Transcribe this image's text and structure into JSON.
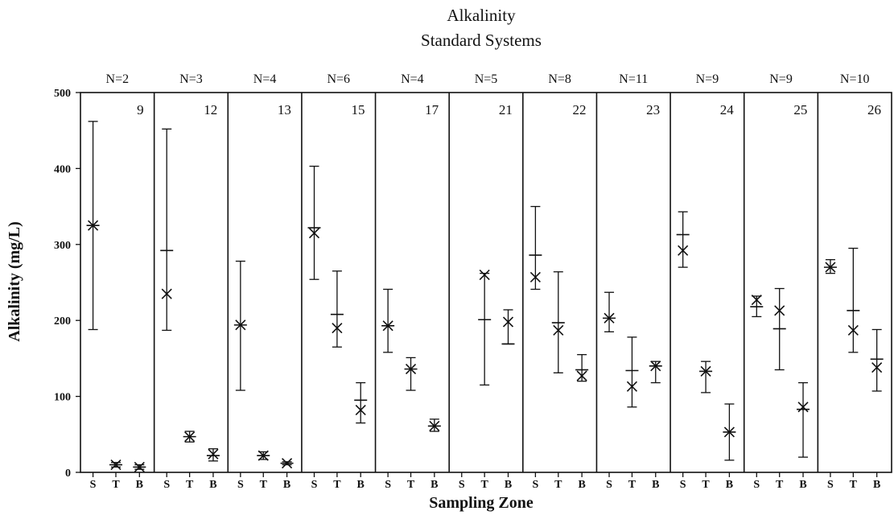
{
  "chart_data": {
    "type": "scatter",
    "title": "Alkalinity",
    "subtitle": "Standard Systems",
    "xlabel": "Sampling Zone",
    "ylabel": "Alkalinity (mg/L)",
    "ylim": [
      0,
      500
    ],
    "yticks": [
      "0",
      "100",
      "200",
      "300",
      "400",
      "500"
    ],
    "zones": [
      "S",
      "T",
      "B"
    ],
    "panels": [
      {
        "system": "9",
        "n_label": "N=2",
        "points": [
          {
            "zone": "S",
            "mean": 325,
            "median": 325,
            "min": 188,
            "max": 462
          },
          {
            "zone": "T",
            "mean": 10,
            "median": 10,
            "min": 7,
            "max": 13
          },
          {
            "zone": "B",
            "mean": 7,
            "median": 7,
            "min": 4,
            "max": 10
          }
        ]
      },
      {
        "system": "12",
        "n_label": "N=3",
        "points": [
          {
            "zone": "S",
            "mean": 235,
            "median": 292,
            "min": 187,
            "max": 452
          },
          {
            "zone": "T",
            "mean": 47,
            "median": 47,
            "min": 40,
            "max": 54
          },
          {
            "zone": "B",
            "mean": 24,
            "median": 22,
            "min": 15,
            "max": 31
          }
        ]
      },
      {
        "system": "13",
        "n_label": "N=4",
        "points": [
          {
            "zone": "S",
            "mean": 194,
            "median": 194,
            "min": 108,
            "max": 278
          },
          {
            "zone": "T",
            "mean": 22,
            "median": 22,
            "min": 17,
            "max": 27
          },
          {
            "zone": "B",
            "mean": 12,
            "median": 12,
            "min": 10,
            "max": 14
          }
        ]
      },
      {
        "system": "15",
        "n_label": "N=6",
        "points": [
          {
            "zone": "S",
            "mean": 315,
            "median": 322,
            "min": 254,
            "max": 403
          },
          {
            "zone": "T",
            "mean": 190,
            "median": 208,
            "min": 165,
            "max": 265
          },
          {
            "zone": "B",
            "mean": 82,
            "median": 95,
            "min": 65,
            "max": 118
          }
        ]
      },
      {
        "system": "17",
        "n_label": "N=4",
        "points": [
          {
            "zone": "S",
            "mean": 193,
            "median": 193,
            "min": 158,
            "max": 241
          },
          {
            "zone": "T",
            "mean": 136,
            "median": 136,
            "min": 108,
            "max": 151
          },
          {
            "zone": "B",
            "mean": 61,
            "median": 61,
            "min": 54,
            "max": 70
          }
        ]
      },
      {
        "system": "21",
        "n_label": "N=5",
        "points": [
          {
            "zone": "S",
            "mean": null,
            "median": null,
            "min": null,
            "max": null
          },
          {
            "zone": "T",
            "mean": 260,
            "median": 201,
            "min": 115,
            "max": 262
          },
          {
            "zone": "B",
            "mean": 198,
            "median": 169,
            "min": 169,
            "max": 214
          }
        ]
      },
      {
        "system": "22",
        "n_label": "N=8",
        "points": [
          {
            "zone": "S",
            "mean": 257,
            "median": 286,
            "min": 241,
            "max": 350
          },
          {
            "zone": "T",
            "mean": 187,
            "median": 197,
            "min": 131,
            "max": 264
          },
          {
            "zone": "B",
            "mean": 127,
            "median": 135,
            "min": 120,
            "max": 155
          }
        ]
      },
      {
        "system": "23",
        "n_label": "N=11",
        "points": [
          {
            "zone": "S",
            "mean": 203,
            "median": 203,
            "min": 185,
            "max": 237
          },
          {
            "zone": "T",
            "mean": 113,
            "median": 134,
            "min": 86,
            "max": 178
          },
          {
            "zone": "B",
            "mean": 140,
            "median": 140,
            "min": 118,
            "max": 146
          }
        ]
      },
      {
        "system": "24",
        "n_label": "N=9",
        "points": [
          {
            "zone": "S",
            "mean": 292,
            "median": 313,
            "min": 270,
            "max": 343
          },
          {
            "zone": "T",
            "mean": 133,
            "median": 133,
            "min": 105,
            "max": 146
          },
          {
            "zone": "B",
            "mean": 53,
            "median": 53,
            "min": 16,
            "max": 90
          }
        ]
      },
      {
        "system": "25",
        "n_label": "N=9",
        "points": [
          {
            "zone": "S",
            "mean": 227,
            "median": 218,
            "min": 205,
            "max": 232
          },
          {
            "zone": "T",
            "mean": 213,
            "median": 189,
            "min": 135,
            "max": 242
          },
          {
            "zone": "B",
            "mean": 86,
            "median": 83,
            "min": 20,
            "max": 118
          }
        ]
      },
      {
        "system": "26",
        "n_label": "N=10",
        "points": [
          {
            "zone": "S",
            "mean": 270,
            "median": 270,
            "min": 262,
            "max": 280
          },
          {
            "zone": "T",
            "mean": 187,
            "median": 213,
            "min": 158,
            "max": 295
          },
          {
            "zone": "B",
            "mean": 138,
            "median": 149,
            "min": 107,
            "max": 188
          }
        ]
      }
    ]
  }
}
